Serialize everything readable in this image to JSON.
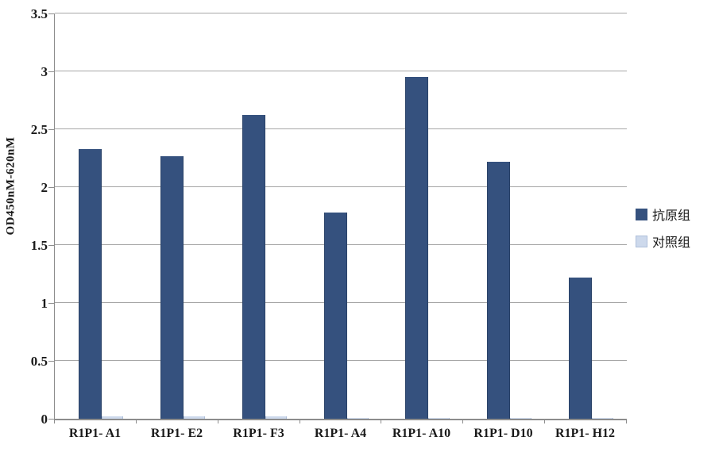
{
  "chart_data": {
    "type": "bar",
    "title": "",
    "xlabel": "",
    "ylabel": "OD450nM-620nM",
    "categories": [
      "R1P1- A1",
      "R1P1- E2",
      "R1P1- F3",
      "R1P1- A4",
      "R1P1- A10",
      "R1P1- D10",
      "R1P1- H12"
    ],
    "series": [
      {
        "name": "抗原组",
        "color": "#35517E",
        "edge": "#2A4268",
        "values": [
          2.33,
          2.27,
          2.62,
          1.78,
          2.95,
          2.22,
          1.22
        ]
      },
      {
        "name": "对照组",
        "color": "#CDD9EC",
        "edge": "#AEBFDA",
        "values": [
          0.02,
          0.02,
          0.02,
          0.01,
          0.01,
          0.01,
          0.01
        ]
      }
    ],
    "ylim": [
      0,
      3.5
    ],
    "y_ticks": [
      "0",
      "0.5",
      "1",
      "1.5",
      "2",
      "2.5",
      "3",
      "3.5"
    ],
    "grid": true,
    "legend_position": "right"
  },
  "colors": {
    "gridline": "#a6a6a6",
    "axis": "#8c8c8c",
    "text": "#1a1a1a",
    "background": "#ffffff"
  }
}
